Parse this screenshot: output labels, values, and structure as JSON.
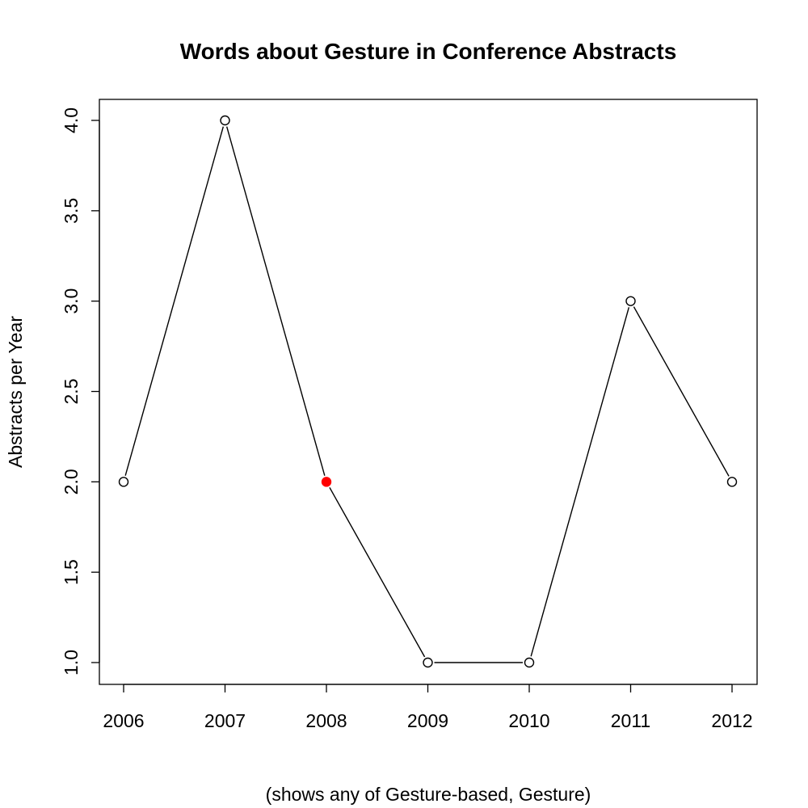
{
  "chart_data": {
    "type": "line",
    "title": "Words about Gesture in Conference Abstracts",
    "xlabel": "(shows any of Gesture-based, Gesture)",
    "ylabel": "Abstracts per Year",
    "x": [
      2006,
      2007,
      2008,
      2009,
      2010,
      2011,
      2012
    ],
    "x_tick_labels": [
      "2006",
      "2007",
      "2008",
      "2009",
      "2010",
      "2011",
      "2012"
    ],
    "y": [
      2,
      4,
      2,
      1,
      1,
      3,
      2
    ],
    "y_ticks": [
      1.0,
      1.5,
      2.0,
      2.5,
      3.0,
      3.5,
      4.0
    ],
    "y_tick_labels": [
      "1.0",
      "1.5",
      "2.0",
      "2.5",
      "3.0",
      "3.5",
      "4.0"
    ],
    "xlim": [
      2006,
      2012
    ],
    "ylim": [
      1,
      4
    ],
    "grid": false,
    "highlighted_point": {
      "x": 2008,
      "y": 2
    },
    "colors": {
      "line": "#000000",
      "marker_fill": "#ffffff",
      "marker_stroke": "#000000",
      "highlight": "#ff0000"
    }
  }
}
